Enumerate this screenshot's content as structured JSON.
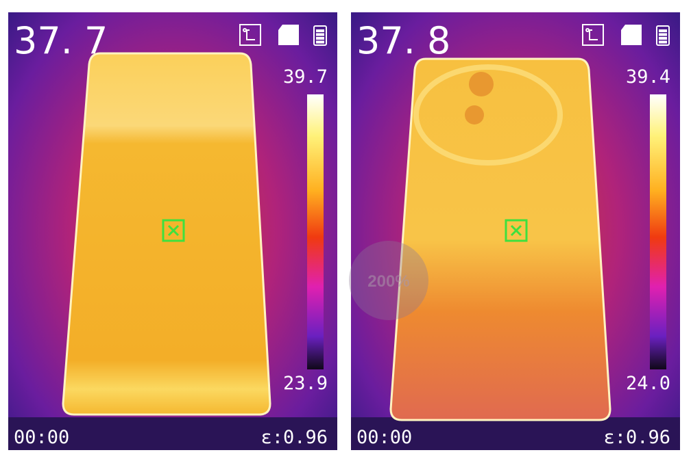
{
  "panels": [
    {
      "temperature": "37. 7",
      "scale_max": "39.7",
      "scale_min": "23.9",
      "time": "00:00",
      "emissivity": "ε:0.96"
    },
    {
      "temperature": "37. 8",
      "scale_max": "39.4",
      "scale_min": "24.0",
      "time": "00:00",
      "emissivity": "ε:0.96"
    }
  ],
  "overlay": {
    "zoom": "200%"
  }
}
